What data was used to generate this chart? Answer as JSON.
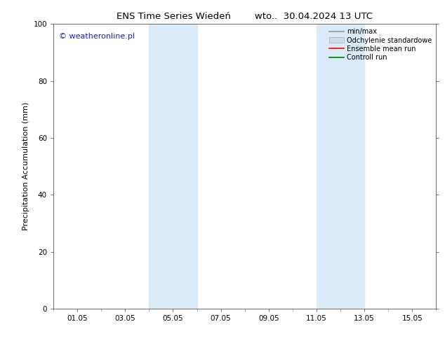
{
  "title": "ENS Time Series Wiedeń        wto..  30.04.2024 13 UTC",
  "ylabel": "Precipitation Accumulation (mm)",
  "ylim": [
    0,
    100
  ],
  "yticks": [
    0,
    20,
    40,
    60,
    80,
    100
  ],
  "xtick_labels": [
    "01.05",
    "03.05",
    "05.05",
    "07.05",
    "09.05",
    "11.05",
    "13.05",
    "15.05"
  ],
  "xtick_positions": [
    1,
    3,
    5,
    7,
    9,
    11,
    13,
    15
  ],
  "xlim": [
    0,
    16
  ],
  "shaded_bands": [
    {
      "x_start": 4.0,
      "x_end": 6.0,
      "color": "#daeaf7"
    },
    {
      "x_start": 11.0,
      "x_end": 13.0,
      "color": "#daeaf7"
    }
  ],
  "watermark_text": "© weatheronline.pl",
  "watermark_color": "#1a1acc",
  "legend_items": [
    {
      "label": "min/max",
      "color": "#999999",
      "lw": 1.2,
      "style": "line"
    },
    {
      "label": "Odchylenie standardowe",
      "color": "#c8dff0",
      "lw": 6,
      "style": "band"
    },
    {
      "label": "Ensemble mean run",
      "color": "#ff0000",
      "lw": 1.2,
      "style": "line"
    },
    {
      "label": "Controll run",
      "color": "#007700",
      "lw": 1.2,
      "style": "line"
    }
  ],
  "background_color": "#ffffff",
  "plot_bg_color": "#ffffff",
  "spine_color": "#555555",
  "title_fontsize": 9.5,
  "label_fontsize": 8,
  "tick_fontsize": 7.5,
  "watermark_fontsize": 8,
  "legend_fontsize": 7
}
